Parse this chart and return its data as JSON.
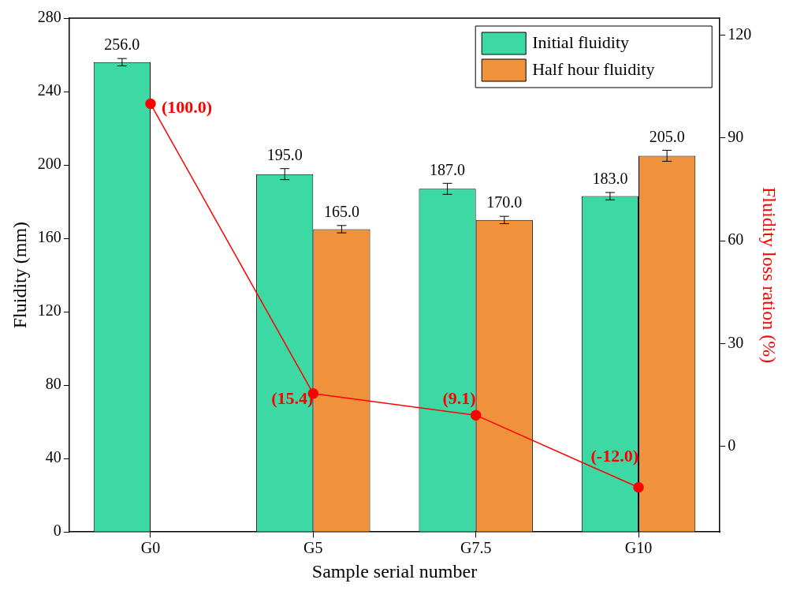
{
  "chart_data": {
    "type": "bar",
    "xlabel": "Sample serial number",
    "ylabel": "Fluidity (mm)",
    "y2label": "Fluidity loss ration (%)",
    "categories": [
      "G0",
      "G5",
      "G7.5",
      "G10"
    ],
    "series": [
      {
        "name": "Initial fluidity",
        "color": "#3dd9a4",
        "values": [
          256,
          195,
          187,
          183
        ],
        "errors": [
          2,
          3,
          3,
          2
        ],
        "value_labels": [
          "256.0",
          "195.0",
          "187.0",
          "183.0"
        ]
      },
      {
        "name": "Half hour fluidity",
        "color": "#f0913c",
        "values": [
          null,
          165,
          170,
          205
        ],
        "errors": [
          null,
          2,
          2,
          3
        ],
        "value_labels": [
          null,
          "165.0",
          "170.0",
          "205.0"
        ]
      },
      {
        "type": "line",
        "axis": "y2",
        "color": "#ff0000",
        "marker": "circle",
        "values": [
          100,
          15.4,
          9.1,
          -12.0
        ],
        "value_labels": [
          "(100.0)",
          "(15.4)",
          "(9.1)",
          "(-12.0)"
        ]
      }
    ],
    "ylim": [
      0,
      280
    ],
    "yticks": [
      0,
      40,
      80,
      120,
      160,
      200,
      240,
      280
    ],
    "y2lim": [
      -25,
      125
    ],
    "y2ticks": [
      0,
      30,
      60,
      90,
      120
    ],
    "legend": "top right",
    "grid": false
  }
}
